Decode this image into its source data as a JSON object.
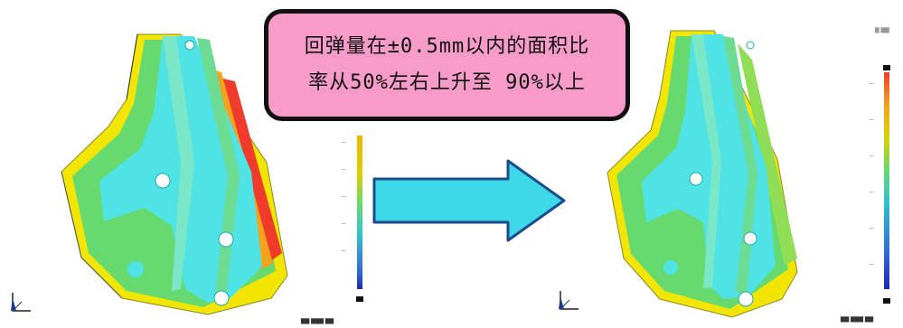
{
  "callout": {
    "line1": "回弹量在±0.5mm以内的面积比",
    "line2": "率从50%左右上升至 90%以上",
    "bg": "#f79bc8",
    "border": "#111111"
  },
  "left_part": {
    "tag_top": "",
    "footer": "▇▇ ▇▇▇ ▇▇"
  },
  "right_part": {
    "tag_top": "▇ ▇▇",
    "footer": "▇▇ ▇▇▇ ▇▇"
  },
  "arrow": {
    "fill": "#3dd9ea",
    "stroke": "#1a4b8a"
  },
  "colors": {
    "cyan": "#4fe3e6",
    "green": "#66d96f",
    "yellow": "#f2e600",
    "red": "#ef3b2b",
    "blue": "#2f63d8"
  },
  "icons": [
    "axis-triad-icon",
    "arrow-right-icon"
  ]
}
